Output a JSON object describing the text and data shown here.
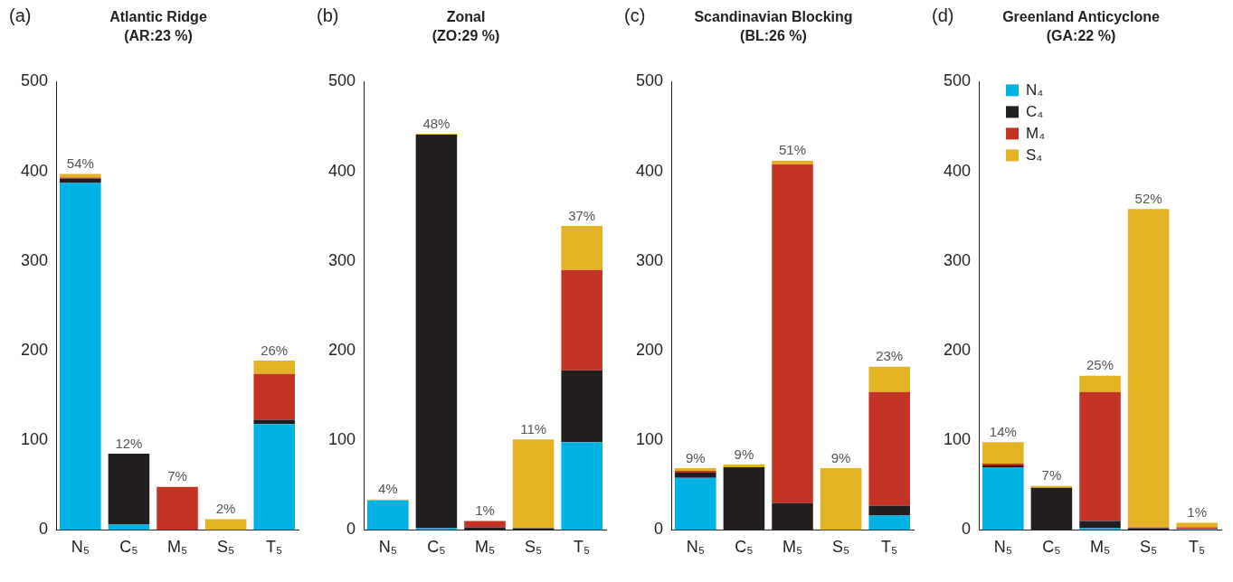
{
  "chart_data": [
    {
      "type": "bar",
      "title": "Atlantic Ridge",
      "subtitle": "(AR:23 %)",
      "categories": [
        "N₅",
        "C₅",
        "M₅",
        "S₅",
        "T₅"
      ],
      "stacked": true,
      "ylim": [
        0,
        500
      ],
      "yticks": [
        0,
        100,
        200,
        300,
        400,
        500
      ],
      "grid": false,
      "legend": false,
      "series": [
        {
          "color": "#00b2e3",
          "values": [
            387,
            6,
            0,
            0,
            118
          ]
        },
        {
          "color": "#231f20",
          "values": [
            5,
            79,
            0,
            0,
            5
          ]
        },
        {
          "color": "#c43426",
          "values": [
            1,
            0,
            48,
            0,
            51
          ]
        },
        {
          "color": "#e3b323",
          "values": [
            4,
            0,
            0,
            12,
            15
          ]
        }
      ],
      "annotations": [
        "(a)",
        {
          "text": "54%",
          "x": "N₅",
          "y": 397
        },
        {
          "text": "12%",
          "x": "C₅",
          "y": 85
        },
        {
          "text": "7%",
          "x": "M₅",
          "y": 48
        },
        {
          "text": "2%",
          "x": "S₅",
          "y": 12
        },
        {
          "text": "26%",
          "x": "T₅",
          "y": 189
        }
      ]
    },
    {
      "type": "bar",
      "title": "Zonal",
      "subtitle": "(ZO:29 %)",
      "categories": [
        "N₅",
        "C₅",
        "M₅",
        "S₅",
        "T₅"
      ],
      "stacked": true,
      "ylim": [
        0,
        500
      ],
      "yticks": [
        0,
        100,
        200,
        300,
        400,
        500
      ],
      "grid": false,
      "legend": false,
      "series": [
        {
          "color": "#00b2e3",
          "values": [
            33,
            2,
            0,
            0,
            98
          ]
        },
        {
          "color": "#231f20",
          "values": [
            0,
            439,
            3,
            2,
            80
          ]
        },
        {
          "color": "#c43426",
          "values": [
            0,
            0,
            7,
            0,
            112
          ]
        },
        {
          "color": "#e3b323",
          "values": [
            1,
            1,
            0,
            99,
            49
          ]
        }
      ],
      "annotations": [
        "(b)",
        {
          "text": "4%",
          "x": "N₅",
          "y": 34
        },
        {
          "text": "48%",
          "x": "C₅",
          "y": 442
        },
        {
          "text": "1%",
          "x": "M₅",
          "y": 10
        },
        {
          "text": "11%",
          "x": "S₅",
          "y": 101
        },
        {
          "text": "37%",
          "x": "T₅",
          "y": 339
        }
      ]
    },
    {
      "type": "bar",
      "title": "Scandinavian Blocking",
      "subtitle": "(BL:26 %)",
      "categories": [
        "N₅",
        "C₅",
        "M₅",
        "S₅",
        "T₅"
      ],
      "stacked": true,
      "ylim": [
        0,
        500
      ],
      "yticks": [
        0,
        100,
        200,
        300,
        400,
        500
      ],
      "grid": false,
      "legend": false,
      "series": [
        {
          "color": "#00b2e3",
          "values": [
            58,
            0,
            0,
            0,
            16
          ]
        },
        {
          "color": "#231f20",
          "values": [
            6,
            70,
            30,
            0,
            11
          ]
        },
        {
          "color": "#c43426",
          "values": [
            2,
            0,
            378,
            0,
            127
          ]
        },
        {
          "color": "#e3b323",
          "values": [
            3,
            3,
            4,
            69,
            28
          ]
        }
      ],
      "annotations": [
        "(c)",
        {
          "text": "9%",
          "x": "N₅",
          "y": 69
        },
        {
          "text": "9%",
          "x": "C₅",
          "y": 73
        },
        {
          "text": "51%",
          "x": "M₅",
          "y": 412
        },
        {
          "text": "9%",
          "x": "S₅",
          "y": 69
        },
        {
          "text": "23%",
          "x": "T₅",
          "y": 182
        }
      ]
    },
    {
      "type": "bar",
      "title": "Greenland Anticyclone",
      "subtitle": "(GA:22 %)",
      "categories": [
        "N₅",
        "C₅",
        "M₅",
        "S₅",
        "T₅"
      ],
      "stacked": true,
      "ylim": [
        0,
        500
      ],
      "yticks": [
        0,
        100,
        200,
        300,
        400,
        500
      ],
      "grid": false,
      "legend": "top left",
      "series": [
        {
          "name": "N₄",
          "color": "#00b2e3",
          "values": [
            70,
            0,
            2,
            0,
            1
          ]
        },
        {
          "name": "C₄",
          "color": "#231f20",
          "values": [
            2,
            47,
            8,
            2,
            0
          ]
        },
        {
          "name": "M₄",
          "color": "#c43426",
          "values": [
            2,
            0,
            144,
            1,
            2
          ]
        },
        {
          "name": "S₄",
          "color": "#e3b323",
          "values": [
            24,
            2,
            18,
            355,
            5
          ]
        }
      ],
      "annotations": [
        "(d)",
        {
          "text": "14%",
          "x": "N₅",
          "y": 98
        },
        {
          "text": "7%",
          "x": "C₅",
          "y": 49
        },
        {
          "text": "25%",
          "x": "M₅",
          "y": 172
        },
        {
          "text": "52%",
          "x": "S₅",
          "y": 358
        },
        {
          "text": "1%",
          "x": "T₅",
          "y": 8
        }
      ]
    }
  ]
}
